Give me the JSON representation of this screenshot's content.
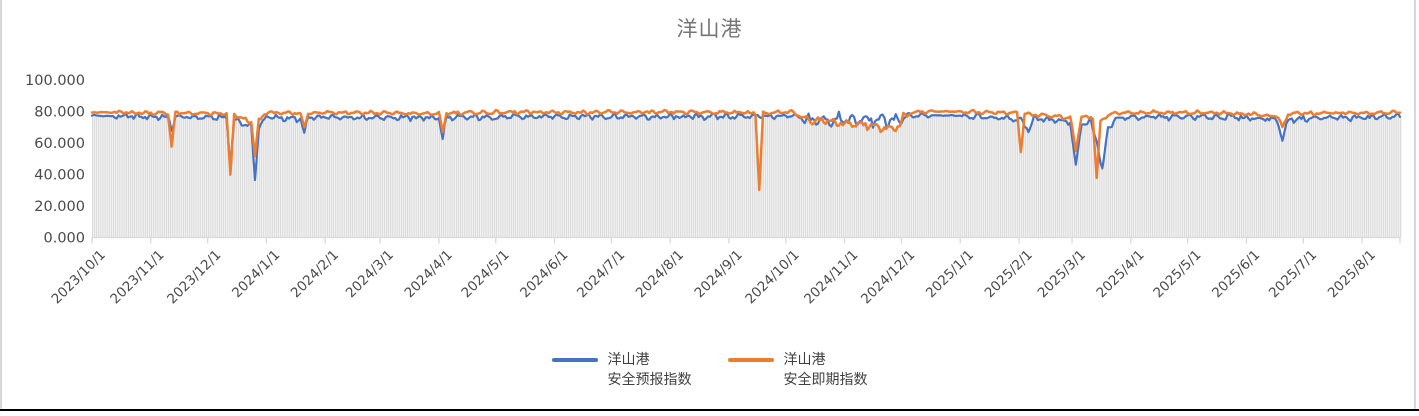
{
  "window": {
    "background": "#ffffff",
    "side_border_color": "#d9d9d9",
    "bottom_rule_color": "#000000"
  },
  "chart_data": {
    "type": "combo",
    "subtype": "daily gray columns + two line series",
    "title": "洋山港",
    "title_color": "#757575",
    "x_tick_labels": [
      "2023/10/1",
      "2023/11/1",
      "2023/12/1",
      "2024/1/1",
      "2024/2/1",
      "2024/3/1",
      "2024/4/1",
      "2024/5/1",
      "2024/6/1",
      "2024/7/1",
      "2024/8/1",
      "2024/9/1",
      "2024/10/1",
      "2024/11/1",
      "2024/12/1",
      "2025/1/1",
      "2025/2/1",
      "2025/3/1",
      "2025/4/1",
      "2025/5/1",
      "2025/6/1",
      "2025/7/1",
      "2025/8/1"
    ],
    "x_start": "2023/10/1",
    "x_total_days": 690,
    "y_tick_values": [
      0,
      20,
      40,
      60,
      80,
      100
    ],
    "y_tick_labels": [
      "0.000",
      "20.000",
      "40.000",
      "60.000",
      "80.000",
      "100.000"
    ],
    "ylim": [
      0,
      100
    ],
    "grid": false,
    "axis_color": "#d9d9d9",
    "tick_label_color": "#4a4a4a",
    "bar_series": {
      "name": "daily-background-columns",
      "color": "#dcdcdc",
      "derive": "min-of-line-series-minus-0.6"
    },
    "series": [
      {
        "name": "洋山港\n安全预报指数",
        "color": "#4472c4",
        "stroke_width": 2.2,
        "keypoints": [
          [
            0,
            77.5
          ],
          [
            10,
            77
          ],
          [
            40,
            76.5
          ],
          [
            42,
            69
          ],
          [
            44,
            76.5
          ],
          [
            71,
            76
          ],
          [
            73,
            46
          ],
          [
            75,
            75
          ],
          [
            84,
            70
          ],
          [
            86,
            37
          ],
          [
            88,
            70
          ],
          [
            92,
            76.5
          ],
          [
            110,
            75
          ],
          [
            112,
            66
          ],
          [
            114,
            76
          ],
          [
            130,
            76.5
          ],
          [
            183,
            76
          ],
          [
            185,
            63
          ],
          [
            187,
            76
          ],
          [
            220,
            76.5
          ],
          [
            260,
            77
          ],
          [
            300,
            76.5
          ],
          [
            340,
            77
          ],
          [
            352,
            77
          ],
          [
            370,
            77
          ],
          [
            376,
            74.5
          ],
          [
            428,
            74.5
          ],
          [
            432,
            77
          ],
          [
            444,
            77.5
          ],
          [
            458,
            77.5
          ],
          [
            470,
            76.5
          ],
          [
            490,
            75
          ],
          [
            494,
            68
          ],
          [
            497,
            76
          ],
          [
            516,
            73
          ],
          [
            519,
            45
          ],
          [
            522,
            72
          ],
          [
            527,
            73
          ],
          [
            530,
            62
          ],
          [
            533,
            42
          ],
          [
            536,
            70
          ],
          [
            541,
            76
          ],
          [
            560,
            76.5
          ],
          [
            600,
            76.5
          ],
          [
            625,
            75
          ],
          [
            628,
            62
          ],
          [
            631,
            75
          ],
          [
            650,
            76
          ],
          [
            670,
            76
          ],
          [
            690,
            77
          ]
        ]
      },
      {
        "name": "洋山港\n安全即期指数",
        "color": "#ed7d31",
        "stroke_width": 2.5,
        "keypoints": [
          [
            0,
            79.5
          ],
          [
            40,
            79
          ],
          [
            42,
            58
          ],
          [
            44,
            79
          ],
          [
            71,
            78.5
          ],
          [
            73,
            39
          ],
          [
            75,
            78
          ],
          [
            84,
            73
          ],
          [
            86,
            52
          ],
          [
            88,
            74
          ],
          [
            92,
            79.5
          ],
          [
            110,
            78.5
          ],
          [
            112,
            70
          ],
          [
            114,
            79
          ],
          [
            130,
            79.5
          ],
          [
            183,
            78.5
          ],
          [
            185,
            67
          ],
          [
            187,
            79
          ],
          [
            220,
            79.5
          ],
          [
            260,
            79.5
          ],
          [
            300,
            79.5
          ],
          [
            340,
            79.5
          ],
          [
            350,
            79
          ],
          [
            352,
            30
          ],
          [
            354,
            79
          ],
          [
            370,
            79.5
          ],
          [
            376,
            75.5
          ],
          [
            424,
            69
          ],
          [
            428,
            75.5
          ],
          [
            432,
            79.5
          ],
          [
            444,
            80
          ],
          [
            458,
            80
          ],
          [
            470,
            79.5
          ],
          [
            488,
            79
          ],
          [
            490,
            55
          ],
          [
            492,
            78.5
          ],
          [
            516,
            76
          ],
          [
            519,
            56
          ],
          [
            522,
            77
          ],
          [
            528,
            76
          ],
          [
            530,
            37
          ],
          [
            532,
            74
          ],
          [
            536,
            78
          ],
          [
            541,
            79
          ],
          [
            560,
            79.5
          ],
          [
            600,
            79
          ],
          [
            625,
            77
          ],
          [
            628,
            70
          ],
          [
            631,
            78.5
          ],
          [
            650,
            79
          ],
          [
            670,
            79
          ],
          [
            690,
            79.5
          ]
        ]
      }
    ],
    "noise": {
      "amplitudes": [
        2.0,
        1.3
      ],
      "max_clamp": [
        80.3,
        81.3
      ],
      "windows": [
        {
          "from": 0,
          "to": 11,
          "mult": 0.25
        },
        {
          "from": 376,
          "to": 431,
          "mult": 2.4
        },
        {
          "from": 444,
          "to": 458,
          "mult": 0.2
        }
      ]
    },
    "legend": {
      "position": "bottom",
      "entries": [
        {
          "label": "洋山港\n安全预报指数",
          "color": "#4472c4"
        },
        {
          "label": "洋山港\n安全即期指数",
          "color": "#ed7d31"
        }
      ]
    }
  }
}
